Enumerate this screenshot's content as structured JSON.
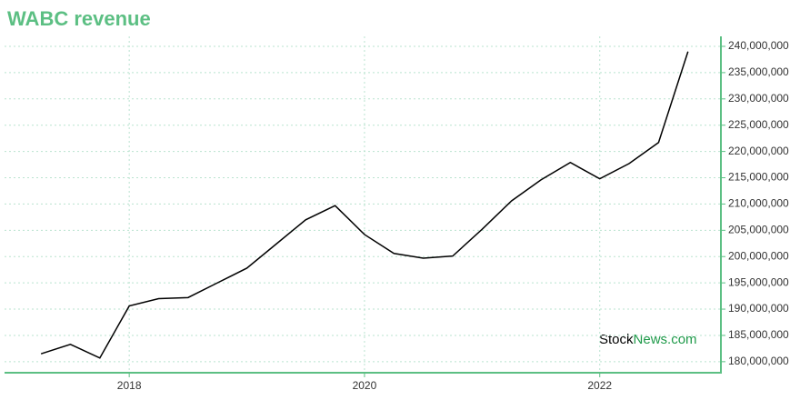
{
  "chart_data": {
    "type": "line",
    "title": "WABC revenue",
    "x": [
      2017.25,
      2017.5,
      2017.75,
      2018.0,
      2018.25,
      2018.5,
      2018.75,
      2019.0,
      2019.25,
      2019.5,
      2019.75,
      2020.0,
      2020.25,
      2020.5,
      2020.75,
      2021.0,
      2021.25,
      2021.5,
      2021.75,
      2022.0,
      2022.25,
      2022.5,
      2022.75
    ],
    "series": [
      {
        "name": "revenue",
        "color": "#000000",
        "values": [
          181500000,
          183300000,
          180700000,
          190600000,
          192000000,
          192200000,
          195000000,
          197800000,
          202400000,
          207000000,
          209700000,
          204200000,
          200600000,
          199700000,
          200100000,
          205200000,
          210600000,
          214600000,
          217900000,
          214800000,
          217700000,
          221700000,
          239000000
        ]
      }
    ],
    "xlim": [
      2016.94,
      2023.03
    ],
    "xticks": [
      2018,
      2020,
      2022
    ],
    "ylim": [
      177900000,
      241900000
    ],
    "yticks": [
      {
        "value": 180000000,
        "label": "180,000,000"
      },
      {
        "value": 185000000,
        "label": "185,000,000"
      },
      {
        "value": 190000000,
        "label": "190,000,000"
      },
      {
        "value": 195000000,
        "label": "195,000,000"
      },
      {
        "value": 200000000,
        "label": "200,000,000"
      },
      {
        "value": 205000000,
        "label": "205,000,000"
      },
      {
        "value": 210000000,
        "label": "210,000,000"
      },
      {
        "value": 215000000,
        "label": "215,000,000"
      },
      {
        "value": 220000000,
        "label": "220,000,000"
      },
      {
        "value": 225000000,
        "label": "225,000,000"
      },
      {
        "value": 230000000,
        "label": "230,000,000"
      },
      {
        "value": 235000000,
        "label": "235,000,000"
      },
      {
        "value": 240000000,
        "label": "240,000,000"
      }
    ],
    "grid": true,
    "watermark": [
      "Stock",
      "News.com"
    ]
  }
}
